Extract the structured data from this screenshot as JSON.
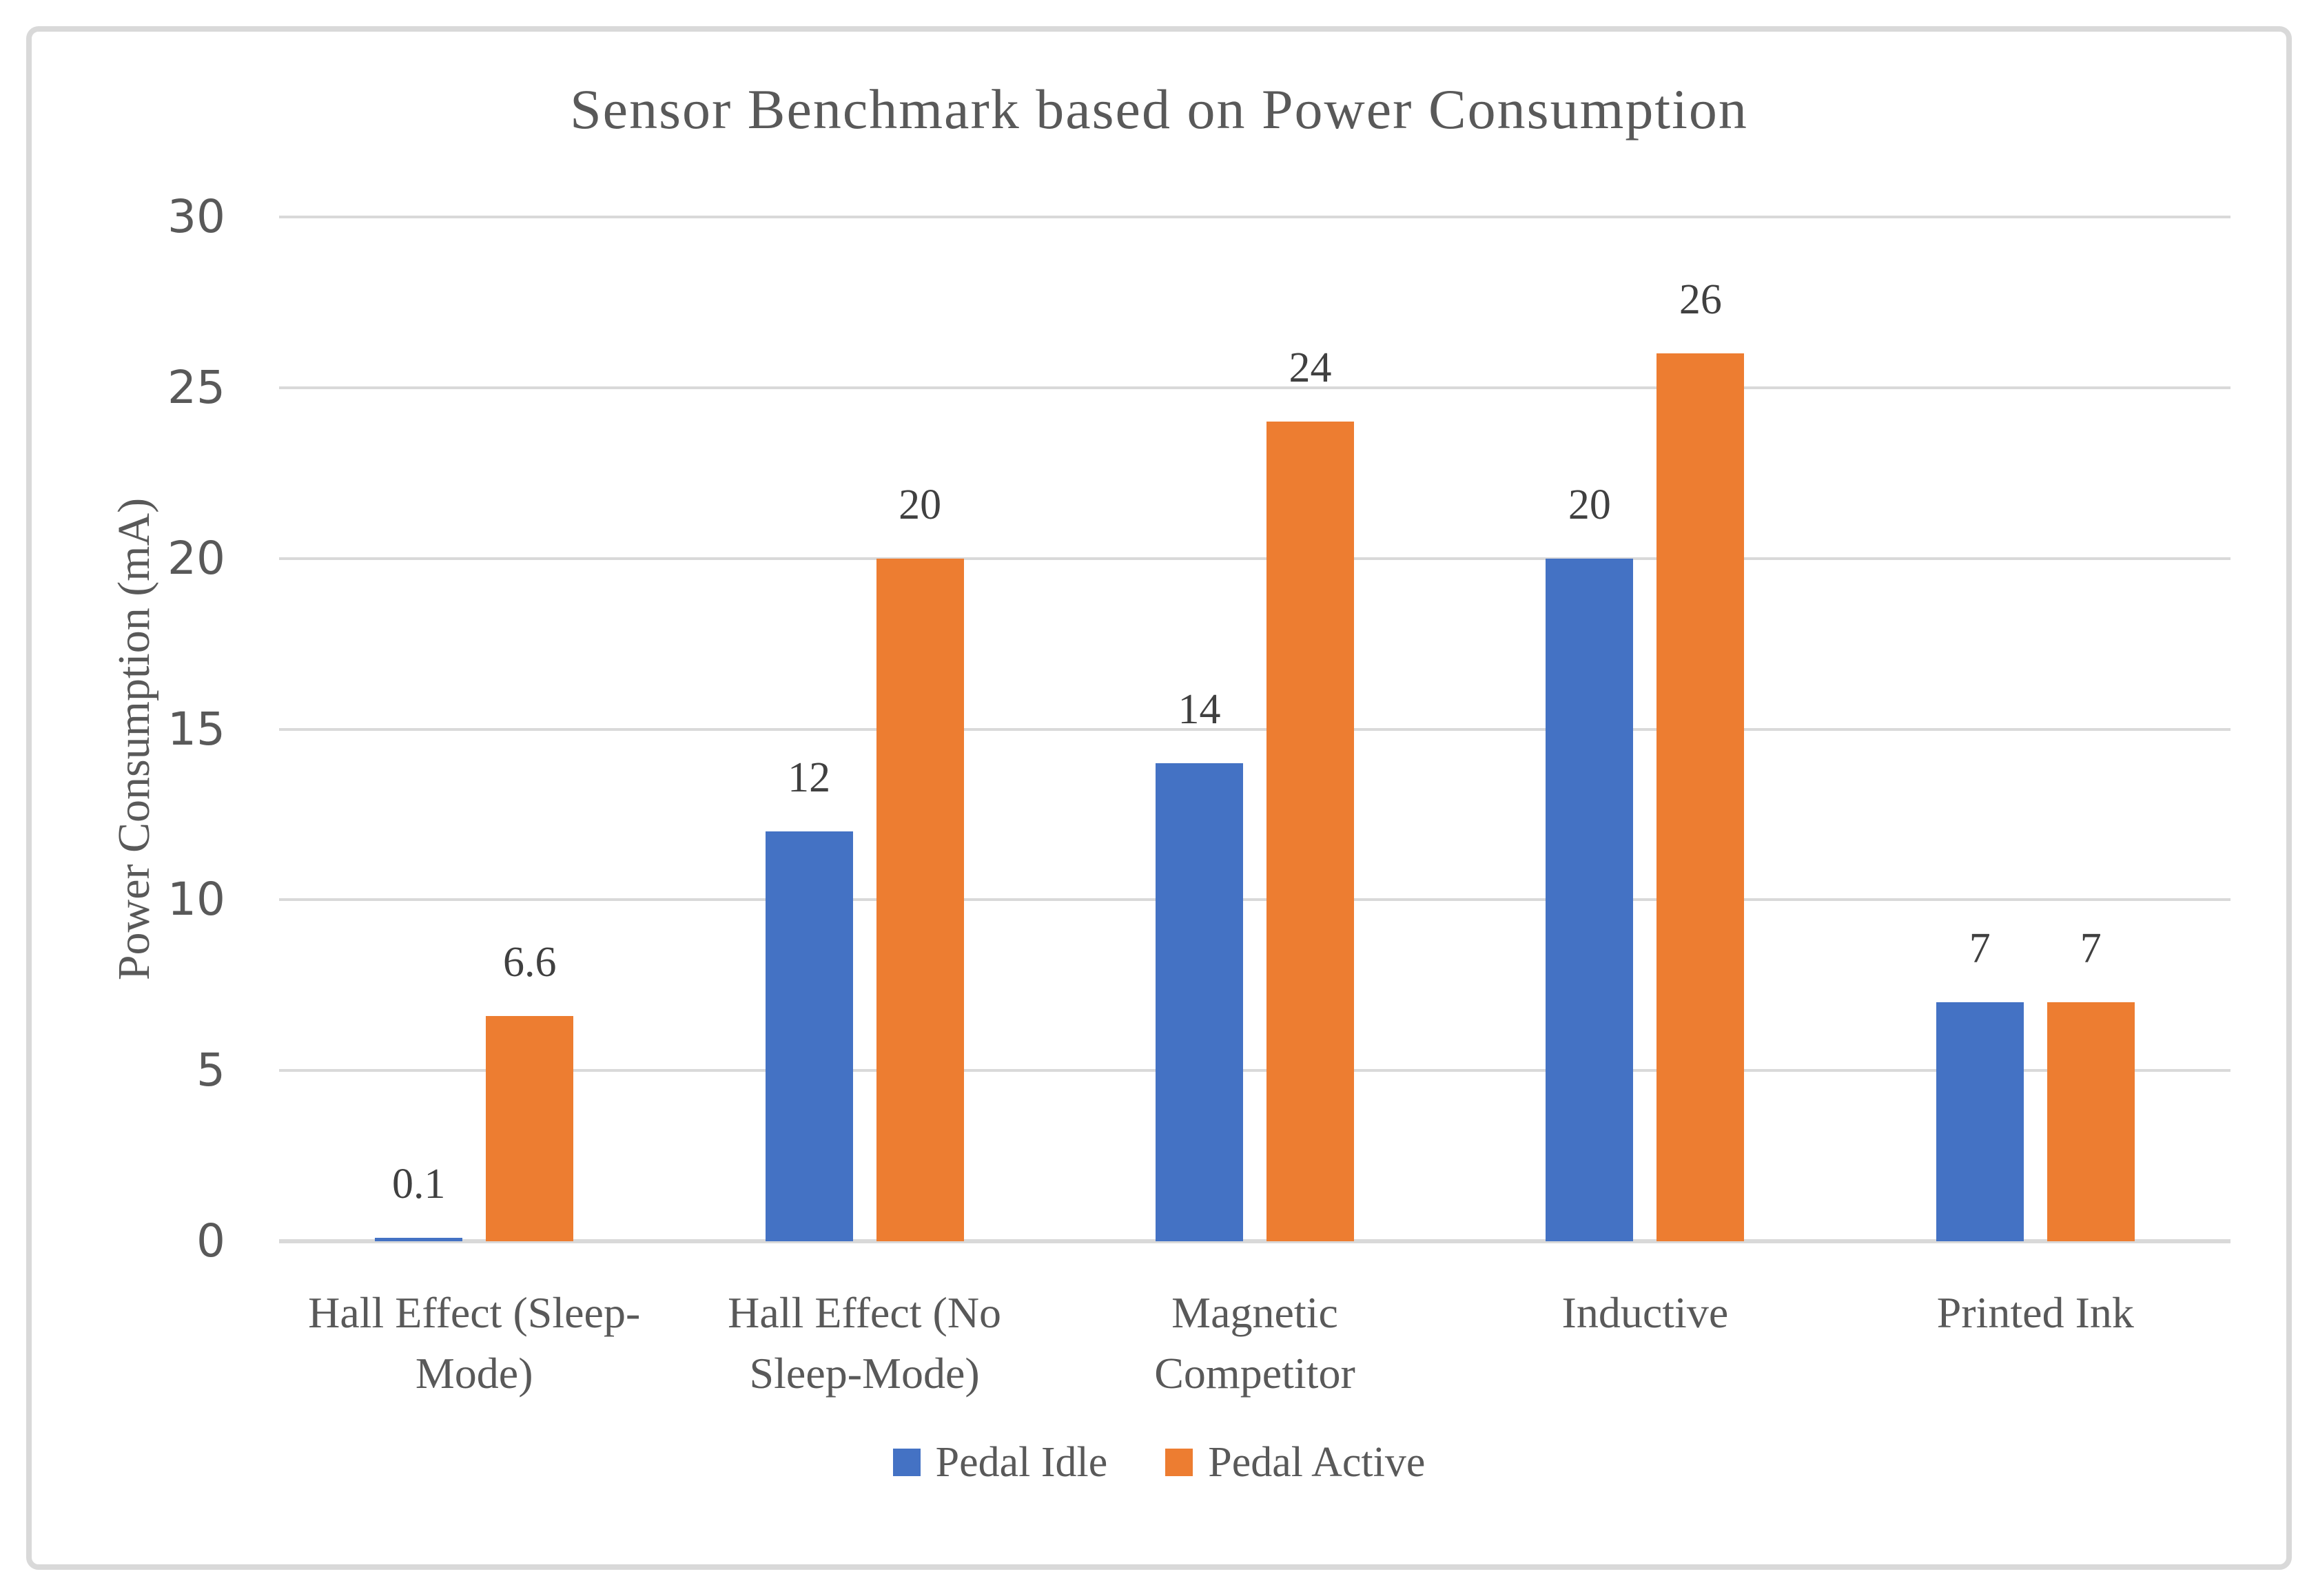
{
  "chart_data": {
    "type": "bar",
    "title": "Sensor Benchmark based on Power Consumption",
    "xlabel": "",
    "ylabel": "Power Consumption (mA)",
    "categories": [
      "Hall Effect (Sleep-\nMode)",
      "Hall Effect (No\nSleep-Mode)",
      "Magnetic\nCompetitor",
      "Inductive",
      "Printed Ink"
    ],
    "series": [
      {
        "name": "Pedal Idle",
        "color": "#4472C4",
        "values": [
          0.1,
          12,
          14,
          20,
          7
        ]
      },
      {
        "name": "Pedal Active",
        "color": "#ED7D31",
        "values": [
          6.6,
          20,
          24,
          26,
          7
        ]
      }
    ],
    "data_labels": [
      [
        "0.1",
        "12",
        "14",
        "20",
        "7"
      ],
      [
        "6.6",
        "20",
        "24",
        "26",
        "7"
      ]
    ],
    "ylim": [
      0,
      30
    ],
    "ytick_step": 5,
    "yticks": [
      "0",
      "5",
      "10",
      "15",
      "20",
      "25",
      "30"
    ],
    "grid": true,
    "legend_position": "bottom"
  },
  "colors": {
    "border": "#D9D9D9",
    "gridline": "#D9D9D9",
    "text": "#595959",
    "data_label": "#404040",
    "background": "#FFFFFF"
  }
}
